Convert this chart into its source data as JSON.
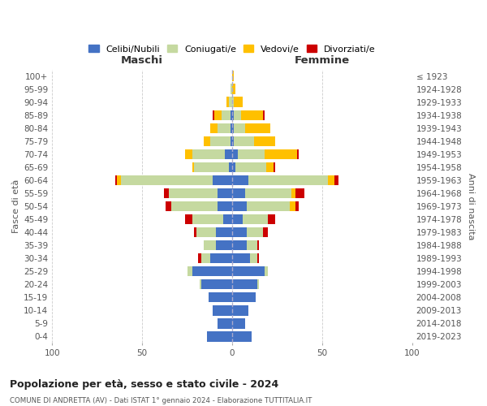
{
  "age_groups": [
    "0-4",
    "5-9",
    "10-14",
    "15-19",
    "20-24",
    "25-29",
    "30-34",
    "35-39",
    "40-44",
    "45-49",
    "50-54",
    "55-59",
    "60-64",
    "65-69",
    "70-74",
    "75-79",
    "80-84",
    "85-89",
    "90-94",
    "95-99",
    "100+"
  ],
  "birth_years": [
    "2019-2023",
    "2014-2018",
    "2009-2013",
    "2004-2008",
    "1999-2003",
    "1994-1998",
    "1989-1993",
    "1984-1988",
    "1979-1983",
    "1974-1978",
    "1969-1973",
    "1964-1968",
    "1959-1963",
    "1954-1958",
    "1949-1953",
    "1944-1948",
    "1939-1943",
    "1934-1938",
    "1929-1933",
    "1924-1928",
    "≤ 1923"
  ],
  "male_celibe": [
    14,
    8,
    11,
    13,
    17,
    22,
    12,
    9,
    9,
    5,
    8,
    8,
    11,
    2,
    4,
    1,
    1,
    1,
    0,
    0,
    0
  ],
  "male_coniugato": [
    0,
    0,
    0,
    0,
    1,
    3,
    5,
    7,
    11,
    17,
    26,
    27,
    51,
    19,
    18,
    11,
    7,
    5,
    2,
    1,
    0
  ],
  "male_vedovo": [
    0,
    0,
    0,
    0,
    0,
    0,
    0,
    0,
    0,
    0,
    0,
    0,
    2,
    1,
    4,
    4,
    4,
    4,
    1,
    0,
    0
  ],
  "male_divorziato": [
    0,
    0,
    0,
    0,
    0,
    0,
    2,
    0,
    1,
    4,
    3,
    3,
    1,
    0,
    0,
    0,
    0,
    1,
    0,
    0,
    0
  ],
  "female_celibe": [
    11,
    7,
    9,
    13,
    14,
    18,
    10,
    8,
    8,
    6,
    8,
    7,
    9,
    2,
    3,
    1,
    1,
    1,
    0,
    0,
    0
  ],
  "female_coniugata": [
    0,
    0,
    0,
    0,
    1,
    2,
    4,
    6,
    9,
    14,
    24,
    26,
    44,
    17,
    15,
    11,
    6,
    4,
    1,
    0,
    0
  ],
  "female_vedova": [
    0,
    0,
    0,
    0,
    0,
    0,
    0,
    0,
    0,
    0,
    3,
    2,
    4,
    4,
    18,
    12,
    14,
    12,
    5,
    2,
    1
  ],
  "female_divorziata": [
    0,
    0,
    0,
    0,
    0,
    0,
    1,
    1,
    3,
    4,
    2,
    5,
    2,
    1,
    1,
    0,
    0,
    1,
    0,
    0,
    0
  ],
  "colors": {
    "celibe": "#4472c4",
    "coniugato": "#c5d9a0",
    "vedovo": "#ffc000",
    "divorziato": "#cc0000"
  },
  "title": "Popolazione per età, sesso e stato civile - 2024",
  "subtitle": "COMUNE DI ANDRETTA (AV) - Dati ISTAT 1° gennaio 2024 - Elaborazione TUTTITALIA.IT",
  "col_left": "Maschi",
  "col_right": "Femmine",
  "ylabel_left": "Fasce di età",
  "ylabel_right": "Anni di nascita",
  "xlim": 100,
  "legend_labels": [
    "Celibi/Nubili",
    "Coniugati/e",
    "Vedovi/e",
    "Divorziati/e"
  ],
  "bg": "#ffffff"
}
